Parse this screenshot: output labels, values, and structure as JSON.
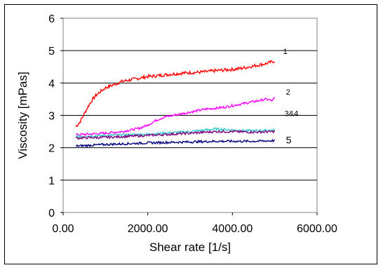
{
  "chart_data": {
    "type": "line",
    "title": "",
    "xlabel": "Shear rate [1/s]",
    "ylabel": "Viscosity [mPas]",
    "xlim": [
      0,
      6000
    ],
    "ylim": [
      0,
      6
    ],
    "x_ticks": [
      0,
      2000,
      4000,
      6000
    ],
    "x_tick_labels": [
      "0.00",
      "2000.00",
      "4000.00",
      "6000.00"
    ],
    "y_ticks": [
      0,
      1,
      2,
      3,
      4,
      5,
      6
    ],
    "y_tick_labels": [
      "0",
      "1",
      "2",
      "3",
      "4",
      "5",
      "6"
    ],
    "grid": "horizontal-major",
    "legend": "none (inline labels at line ends)",
    "series": [
      {
        "name": "1",
        "color": "#ff0000",
        "x": [
          300,
          400,
          500,
          600,
          700,
          800,
          900,
          1000,
          1200,
          1400,
          1600,
          1800,
          2000,
          2200,
          2400,
          2600,
          2800,
          3000,
          3200,
          3400,
          3600,
          3800,
          4000,
          4200,
          4400,
          4600,
          4800,
          5000
        ],
        "values": [
          2.65,
          2.8,
          3.05,
          3.3,
          3.5,
          3.65,
          3.75,
          3.85,
          3.95,
          4.05,
          4.1,
          4.15,
          4.2,
          4.22,
          4.25,
          4.28,
          4.3,
          4.32,
          4.33,
          4.35,
          4.38,
          4.4,
          4.42,
          4.45,
          4.5,
          4.55,
          4.6,
          4.68
        ]
      },
      {
        "name": "2",
        "color": "#ff00ff",
        "x": [
          300,
          600,
          1000,
          1400,
          1800,
          2000,
          2200,
          2400,
          2600,
          2800,
          3000,
          3200,
          3400,
          3600,
          3800,
          4000,
          4200,
          4400,
          4600,
          4800,
          4950,
          5000
        ],
        "values": [
          2.4,
          2.42,
          2.45,
          2.5,
          2.6,
          2.7,
          2.85,
          2.95,
          3.0,
          3.05,
          3.1,
          3.15,
          3.2,
          3.22,
          3.25,
          3.3,
          3.35,
          3.4,
          3.45,
          3.5,
          3.45,
          3.55
        ]
      },
      {
        "name": "3&4",
        "color": "#33cccc",
        "x": [
          300,
          1000,
          2000,
          3000,
          3600,
          4000,
          4500,
          5000
        ],
        "values": [
          2.35,
          2.38,
          2.42,
          2.5,
          2.58,
          2.55,
          2.52,
          2.55
        ]
      },
      {
        "name": "3&4",
        "color": "#800080",
        "x": [
          300,
          1000,
          2000,
          3000,
          3600,
          4000,
          4500,
          5000
        ],
        "values": [
          2.3,
          2.32,
          2.38,
          2.45,
          2.5,
          2.5,
          2.48,
          2.5
        ]
      },
      {
        "name": "5",
        "color": "#000080",
        "x": [
          300,
          1000,
          2000,
          3000,
          3600,
          4000,
          4500,
          5000
        ],
        "values": [
          2.05,
          2.1,
          2.15,
          2.18,
          2.2,
          2.2,
          2.2,
          2.22
        ]
      }
    ],
    "annotations": [
      {
        "text": "1",
        "series": 0
      },
      {
        "text": "2",
        "series": 1
      },
      {
        "text": "3&4",
        "series": 2
      },
      {
        "text": "5",
        "series": 4
      }
    ]
  }
}
